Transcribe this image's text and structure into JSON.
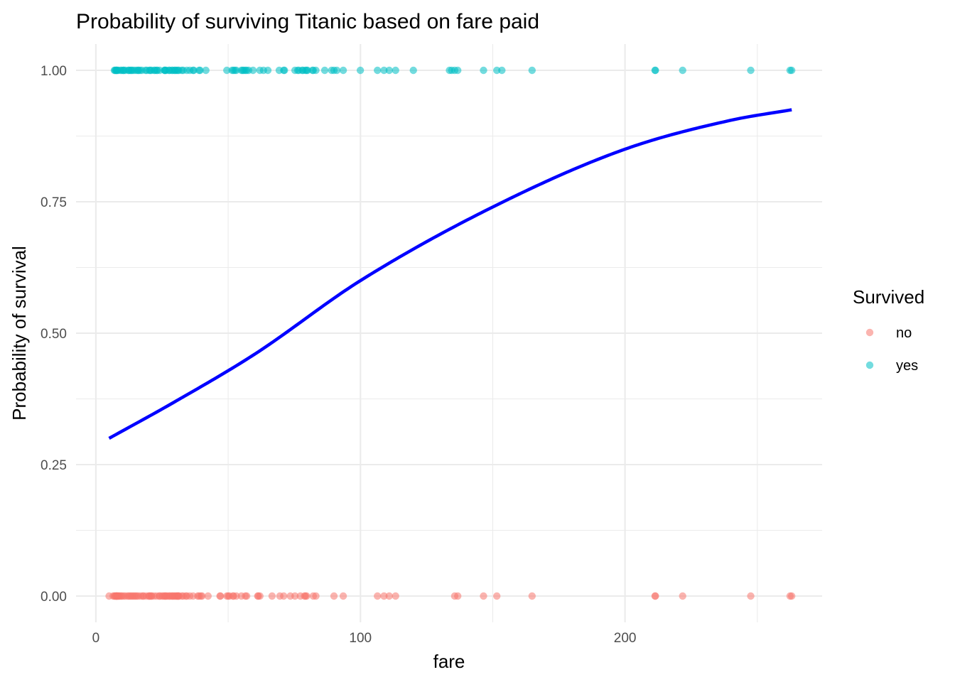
{
  "chart_data": {
    "type": "scatter",
    "title": "Probability of surviving Titanic based on fare paid",
    "xlabel": "fare",
    "ylabel": "Probability of survival",
    "xlim": [
      -7.5,
      274.5
    ],
    "ylim": [
      -0.05,
      1.05
    ],
    "x_ticks": [
      0,
      100,
      200
    ],
    "y_ticks": [
      0.0,
      0.25,
      0.5,
      0.75,
      1.0
    ],
    "y_tick_labels": [
      "0.00",
      "0.25",
      "0.50",
      "0.75",
      "1.00"
    ],
    "grid": true,
    "legend": {
      "title": "Survived",
      "position": "right",
      "entries": [
        {
          "label": "no",
          "color": "#F8766D"
        },
        {
          "label": "yes",
          "color": "#00BFC4"
        }
      ]
    },
    "series": [
      {
        "name": "no",
        "color": "#F8766D",
        "y": 0,
        "x": [
          5,
          6.5,
          7,
          7.25,
          7.5,
          7.75,
          7.9,
          8,
          8.05,
          8.5,
          8.66,
          9,
          9.5,
          9.84,
          10.5,
          11.13,
          12,
          12.5,
          13,
          13.5,
          14,
          14.5,
          15,
          15.5,
          16.1,
          17,
          17.8,
          18,
          19,
          19.97,
          20.2,
          20.5,
          21,
          21.07,
          22,
          23,
          24,
          24.15,
          25,
          25.47,
          26,
          26.25,
          26.55,
          27,
          27.72,
          27.9,
          28.5,
          29,
          29.12,
          29.7,
          30,
          30.5,
          30.7,
          31,
          31.27,
          31.39,
          32.5,
          33,
          34.02,
          34.38,
          35.5,
          36.75,
          38.5,
          39,
          39.69,
          40.13,
          42.4,
          46.9,
          47.1,
          49.5,
          50,
          50.5,
          51.86,
          52,
          53.1,
          55,
          56.5,
          57,
          61.17,
          61.38,
          62,
          66.6,
          69.55,
          71,
          73.5,
          75.25,
          77.29,
          78.85,
          79.2,
          79.65,
          82.17,
          83.16,
          90,
          93.5,
          106.43,
          108.9,
          110.88,
          113.28,
          135.63,
          136.78,
          146.52,
          151.55,
          164.87,
          211.34,
          211.5,
          221.78,
          247.52,
          262.38,
          263
        ]
      },
      {
        "name": "yes",
        "color": "#00BFC4",
        "y": 1,
        "x": [
          7,
          7.23,
          7.55,
          7.75,
          7.93,
          8.05,
          8.52,
          9.35,
          9.84,
          10.46,
          10.5,
          11.13,
          12.29,
          12.48,
          13,
          13.42,
          13.79,
          14.45,
          15.25,
          15.9,
          16.1,
          16.7,
          17.4,
          18.75,
          19.26,
          20.25,
          20.53,
          21,
          22.03,
          22.36,
          23,
          23.25,
          24.15,
          25.93,
          26,
          26.25,
          26.55,
          27.72,
          27.75,
          28.71,
          29,
          29.7,
          30,
          30.5,
          31,
          31.39,
          32.5,
          33,
          34.38,
          35.5,
          36.75,
          37,
          39,
          39.4,
          41.58,
          49.5,
          51.48,
          52,
          52.55,
          53.1,
          55,
          55.44,
          55.9,
          56.5,
          57,
          57.75,
          59.4,
          61.98,
          63.36,
          65,
          69.3,
          71,
          71.28,
          75.25,
          76.29,
          76.73,
          77.96,
          78.27,
          79.2,
          79.65,
          80,
          81.86,
          82.17,
          83.16,
          86.5,
          89.1,
          90,
          91.08,
          93.5,
          99.96,
          106.43,
          108.9,
          110.88,
          113.28,
          120,
          133.65,
          134.5,
          135.63,
          136.78,
          146.52,
          151.55,
          153.46,
          164.87,
          211.34,
          211.5,
          221.78,
          247.52,
          262.38,
          263
        ]
      },
      {
        "name": "",
        "type": "line",
        "color": "#0000FF",
        "x": [
          5,
          30,
          60,
          100,
          150,
          200,
          240,
          263
        ],
        "y": [
          0.3,
          0.37,
          0.46,
          0.6,
          0.74,
          0.85,
          0.905,
          0.925
        ]
      }
    ]
  }
}
